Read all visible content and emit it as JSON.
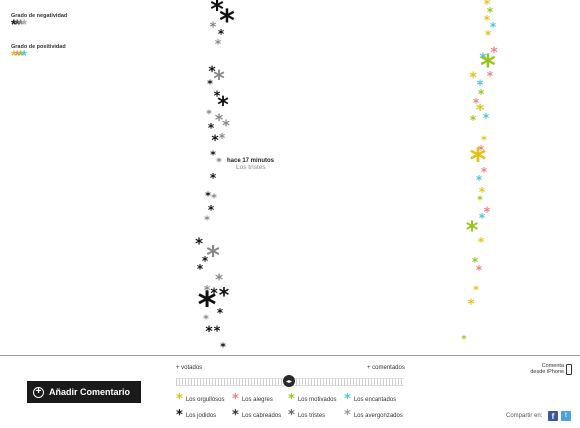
{
  "legend": {
    "negativity_title": "Grado de negatividad",
    "positivity_title": "Grado de positividad"
  },
  "tooltip": {
    "time": "hace 17 minutos",
    "group": "Los tristes"
  },
  "add_comment_label": "Añadir Comentario",
  "slider": {
    "left_label": "+ votados",
    "right_label": "+ comentados"
  },
  "iphone_label": "Comenta desde iPhone",
  "share_label": "Compartir en:",
  "categories": [
    {
      "label": "Los orgullosos",
      "color": "#c9c317"
    },
    {
      "label": "Los alegres",
      "color": "#f08080"
    },
    {
      "label": "Los motivados",
      "color": "#9ac41b"
    },
    {
      "label": "Los encantados",
      "color": "#4ec3d9"
    },
    {
      "label": "Los jodidos",
      "color": "#111111"
    },
    {
      "label": "Los cabreados",
      "color": "#333333"
    },
    {
      "label": "Los tristes",
      "color": "#666666"
    },
    {
      "label": "Los avergonzados",
      "color": "#999999"
    }
  ],
  "colors": {
    "black": "#111111",
    "grey": "#888888",
    "yellow": "#e2c21a",
    "pink": "#f08080",
    "green": "#9ac41b",
    "blue": "#4ec3d9"
  }
}
